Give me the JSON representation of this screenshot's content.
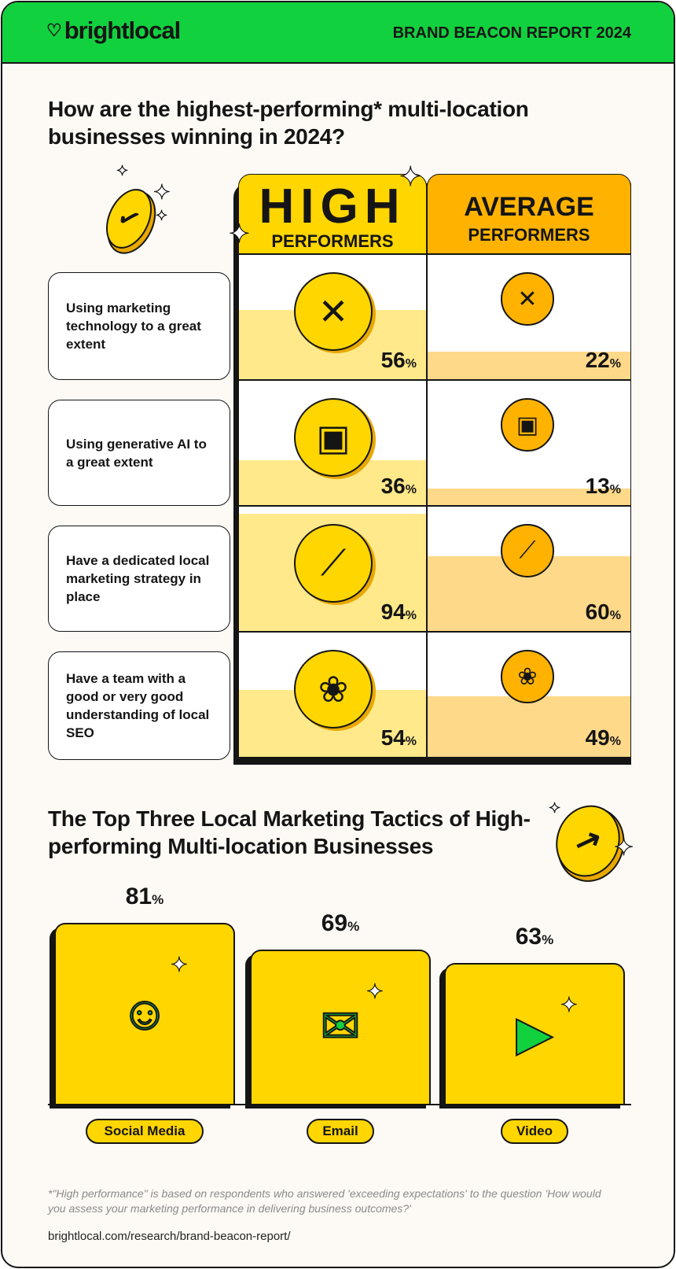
{
  "header": {
    "brand": "brightlocal",
    "report": "BRAND BEACON REPORT 2024"
  },
  "section1": {
    "title": "How are the highest-performing* multi-location businesses winning in 2024?",
    "col_high_big": "HIGH",
    "col_high_small": "PERFORMERS",
    "col_avg_big": "AVERAGE",
    "col_avg_small": "PERFORMERS",
    "pct_sign": "%",
    "rows": [
      {
        "label": "Using marketing technology to a great extent",
        "high": "56",
        "avg": "22",
        "icon": "tools-icon"
      },
      {
        "label": "Using generative AI to a great extent",
        "high": "36",
        "avg": "13",
        "icon": "robot-icon"
      },
      {
        "label": "Have a dedicated local marketing strategy in place",
        "high": "94",
        "avg": "60",
        "icon": "compass-icon"
      },
      {
        "label": "Have a team with a good or very good understanding of local SEO",
        "high": "54",
        "avg": "49",
        "icon": "brain-icon"
      }
    ]
  },
  "section2": {
    "title": "The Top Three Local Marketing Tactics of High-performing Multi-location Businesses",
    "bars": [
      {
        "label": "Social Media",
        "value": "81",
        "icon": "social-network-icon"
      },
      {
        "label": "Email",
        "value": "69",
        "icon": "envelope-icon"
      },
      {
        "label": "Video",
        "value": "63",
        "icon": "play-icon"
      }
    ]
  },
  "footer": {
    "note": "*\"High performance\" is based on respondents who answered 'exceeding expectations' to the question 'How would you assess your marketing performance in delivering business outcomes?'",
    "url": "brightlocal.com/research/brand-beacon-report/"
  },
  "colors": {
    "green": "#12d13f",
    "yellow": "#ffd600",
    "high_fill": "#ffe98a",
    "orange": "#ffb300",
    "avg_fill": "#ffd98a"
  },
  "chart_data": [
    {
      "type": "bar",
      "title": "How are the highest-performing* multi-location businesses winning in 2024?",
      "categories": [
        "Using marketing technology to a great extent",
        "Using generative AI to a great extent",
        "Have a dedicated local marketing strategy in place",
        "Have a team with a good or very good understanding of local SEO"
      ],
      "series": [
        {
          "name": "HIGH PERFORMERS",
          "values": [
            56,
            36,
            94,
            54
          ]
        },
        {
          "name": "AVERAGE PERFORMERS",
          "values": [
            22,
            13,
            60,
            49
          ]
        }
      ],
      "ylim": [
        0,
        100
      ]
    },
    {
      "type": "bar",
      "title": "The Top Three Local Marketing Tactics of High-performing Multi-location Businesses",
      "categories": [
        "Social Media",
        "Email",
        "Video"
      ],
      "values": [
        81,
        69,
        63
      ],
      "ylim": [
        0,
        100
      ]
    }
  ]
}
